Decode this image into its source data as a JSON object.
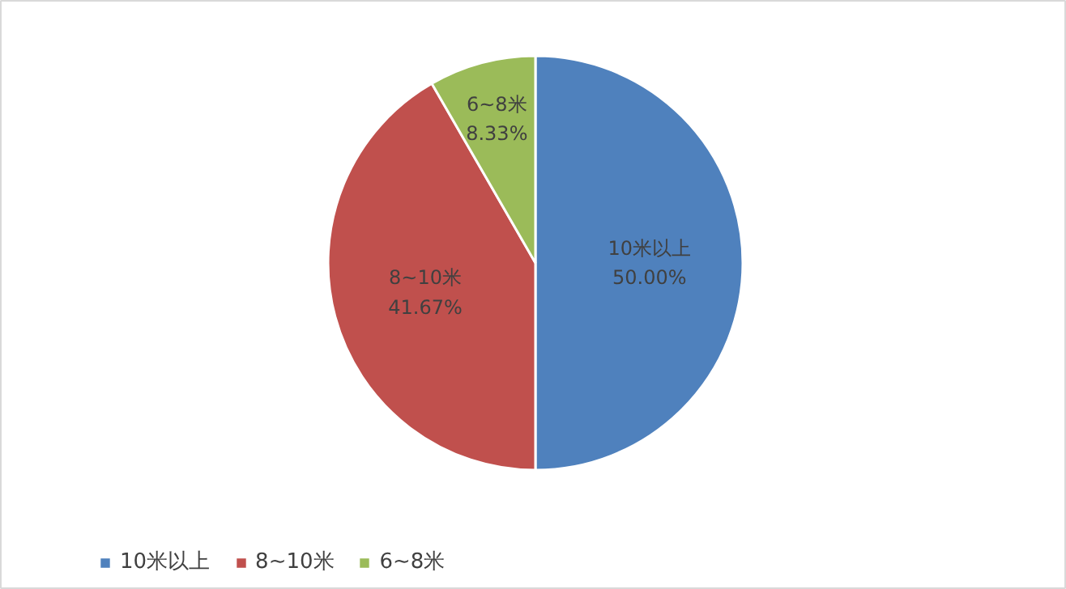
{
  "chart_data": {
    "type": "pie",
    "categories": [
      "10米以上",
      "8~10米",
      "6~8米"
    ],
    "values": [
      50.0,
      41.67,
      8.33
    ],
    "colors": [
      "#4f81bd",
      "#c0504d",
      "#9bbb59"
    ],
    "value_labels": [
      "50.00%",
      "41.67%",
      "8.33%"
    ],
    "legend": "bottom left"
  }
}
